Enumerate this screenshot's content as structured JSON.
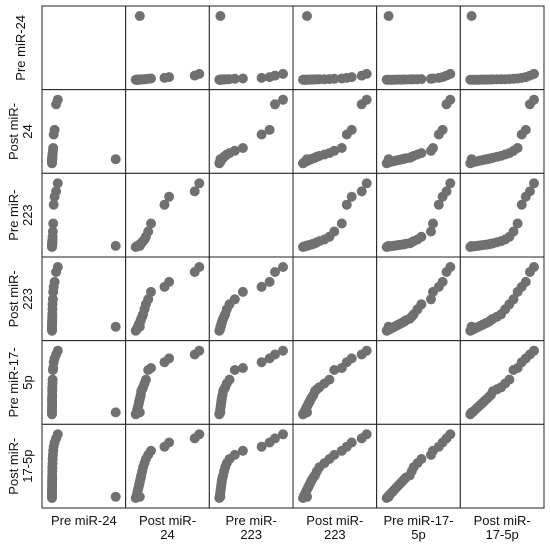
{
  "chart_data": {
    "type": "scatter",
    "variables": [
      "Pre miR-24",
      "Post miR-24",
      "Pre miR-223",
      "Post miR-223",
      "Pre miR-17-5p",
      "Post miR-17-5p"
    ],
    "labels": {
      "left": [
        [
          "Pre miR-24"
        ],
        [
          "Post miR-",
          "24"
        ],
        [
          "Pre miR-",
          "223"
        ],
        [
          "Post miR-",
          "223"
        ],
        [
          "Pre miR-17-",
          "5p"
        ],
        [
          "Post miR-",
          "17-5p"
        ]
      ],
      "bottom": [
        [
          "Pre miR-24"
        ],
        [
          "Post miR-",
          "24"
        ],
        [
          "Pre miR-",
          "223"
        ],
        [
          "Post miR-",
          "223"
        ],
        [
          "Pre miR-17-",
          "5p"
        ],
        [
          "Post miR-",
          "17-5p"
        ]
      ]
    },
    "values": {
      "Pre miR-24": [
        0,
        0,
        0,
        0,
        0,
        0.01,
        0.01,
        0.02,
        0.02,
        0.03,
        0.03,
        0.04,
        0.05,
        0.06,
        0.08,
        0.1,
        0.15,
        0.2,
        0.3,
        0.45,
        0.7,
        1.0,
        11.0
      ],
      "Post miR-24": [
        0.3,
        0.5,
        0.6,
        0.7,
        0.8,
        0.9,
        1.0,
        1.1,
        1.2,
        1.3,
        1.4,
        1.5,
        1.7,
        1.9,
        2.2,
        2.5,
        3.0,
        3.6,
        6.5,
        7.5,
        13.0,
        14.0,
        1.2
      ],
      "Pre miR-223": [
        0.1,
        0.2,
        0.25,
        0.3,
        0.35,
        0.4,
        0.45,
        0.5,
        0.55,
        0.6,
        0.7,
        0.8,
        1.0,
        1.2,
        1.5,
        2.0,
        3.0,
        4.5,
        8.0,
        9.5,
        10.5,
        12.0,
        0.3
      ],
      "Post miR-223": [
        0.2,
        0.4,
        0.6,
        0.8,
        1.0,
        1.2,
        1.4,
        1.6,
        1.8,
        2.0,
        2.3,
        2.6,
        3.0,
        3.5,
        4.5,
        5.5,
        6.5,
        8.0,
        9.0,
        10.0,
        12.0,
        13.0,
        1.0
      ],
      "Pre miR-17-5p": [
        0.5,
        1.0,
        1.5,
        2.0,
        2.5,
        3.0,
        3.5,
        4.0,
        4.5,
        5.0,
        5.5,
        6.5,
        7.0,
        7.5,
        8.5,
        9.5,
        12.0,
        12.5,
        14.0,
        15.0,
        16.0,
        17.0,
        1.0
      ],
      "Post miR-17-5p": [
        0.5,
        1.0,
        1.5,
        2.0,
        2.5,
        3.0,
        3.5,
        4.0,
        4.5,
        5.0,
        5.5,
        6.0,
        7.0,
        8.0,
        9.0,
        10.0,
        11.0,
        12.0,
        13.0,
        14.0,
        15.0,
        16.0,
        0.8
      ]
    },
    "diagonal": "empty",
    "grid": false,
    "point_color": "#707070"
  }
}
